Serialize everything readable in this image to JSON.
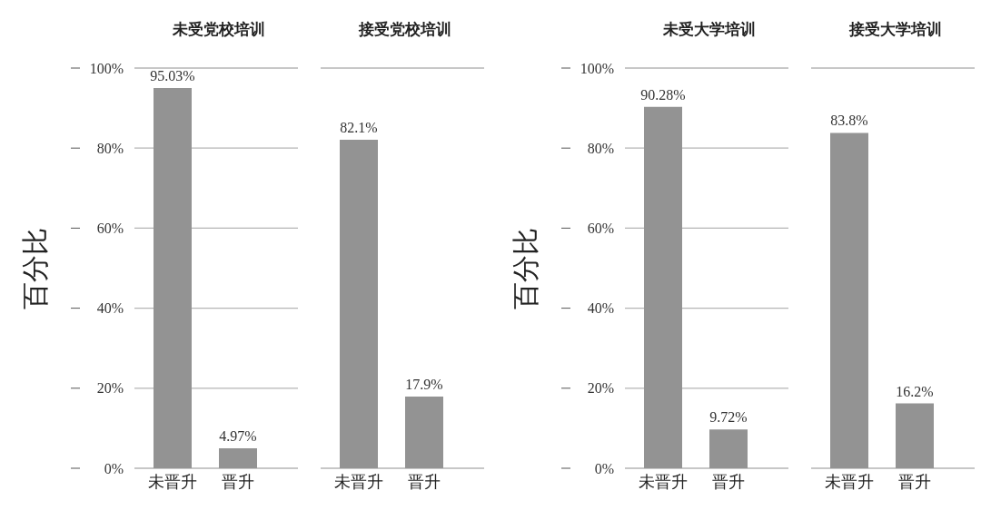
{
  "chart_data": [
    {
      "type": "bar",
      "title": "未受党校培训",
      "ylabel": "百分比",
      "categories": [
        "未晋升",
        "晋升"
      ],
      "values": [
        95.03,
        4.97
      ],
      "value_labels": [
        "95.03%",
        "4.97%"
      ],
      "color": "#939393",
      "ylim": [
        0,
        100
      ],
      "yticks": [
        {
          "value": 0,
          "label": "0%"
        },
        {
          "value": 20,
          "label": "20%"
        },
        {
          "value": 40,
          "label": "40%"
        },
        {
          "value": 60,
          "label": "60%"
        },
        {
          "value": 80,
          "label": "80%"
        },
        {
          "value": 100,
          "label": "100%"
        }
      ],
      "grid": "y"
    },
    {
      "type": "bar",
      "title": "接受党校培训",
      "categories": [
        "未晋升",
        "晋升"
      ],
      "values": [
        82.1,
        17.9
      ],
      "value_labels": [
        "82.1%",
        "17.9%"
      ],
      "color": "#939393",
      "ylim": [
        0,
        100
      ],
      "yticks": [
        {
          "value": 0,
          "label": null
        },
        {
          "value": 20,
          "label": null
        },
        {
          "value": 40,
          "label": null
        },
        {
          "value": 60,
          "label": null
        },
        {
          "value": 80,
          "label": null
        },
        {
          "value": 100,
          "label": null
        }
      ],
      "grid": "y",
      "tick_labels": "x"
    },
    {
      "type": "bar",
      "title": "未受大学培训",
      "ylabel": "百分比",
      "categories": [
        "未晋升",
        "晋升"
      ],
      "values": [
        90.28,
        9.72
      ],
      "value_labels": [
        "90.28%",
        "9.72%"
      ],
      "color": "#939393",
      "ylim": [
        0,
        100
      ],
      "yticks": [
        {
          "value": 0,
          "label": "0%"
        },
        {
          "value": 20,
          "label": "20%"
        },
        {
          "value": 40,
          "label": "40%"
        },
        {
          "value": 60,
          "label": "60%"
        },
        {
          "value": 80,
          "label": "80%"
        },
        {
          "value": 100,
          "label": "100%"
        }
      ],
      "grid": "y"
    },
    {
      "type": "bar",
      "title": "接受大学培训",
      "categories": [
        "未晋升",
        "晋升"
      ],
      "values": [
        83.8,
        16.2
      ],
      "value_labels": [
        "83.8%",
        "16.2%"
      ],
      "color": "#939393",
      "ylim": [
        0,
        100
      ],
      "yticks": [
        {
          "value": 0,
          "label": null
        },
        {
          "value": 20,
          "label": null
        },
        {
          "value": 40,
          "label": null
        },
        {
          "value": 60,
          "label": null
        },
        {
          "value": 80,
          "label": null
        },
        {
          "value": 100,
          "label": null
        }
      ],
      "grid": "y",
      "tick_labels": "x"
    }
  ]
}
